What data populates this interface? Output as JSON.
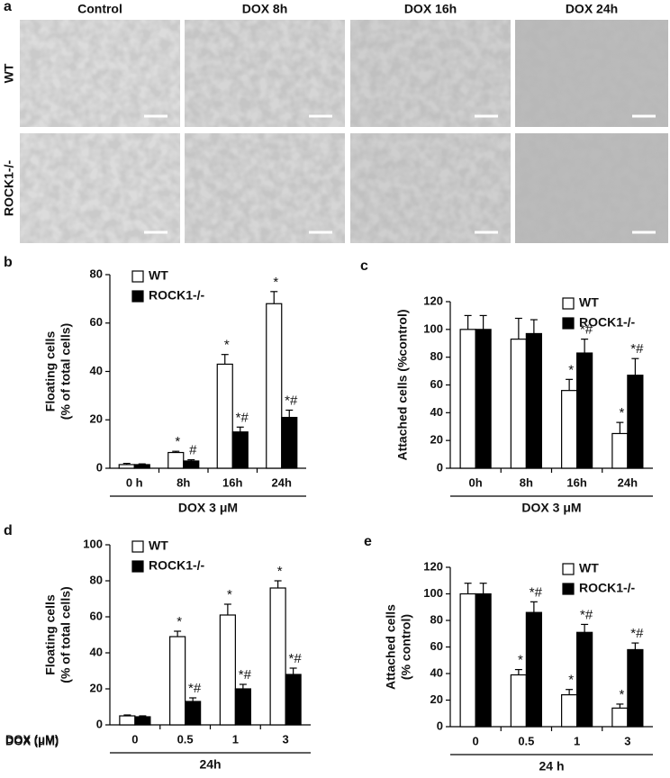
{
  "figure_a": {
    "panel": "a",
    "columns": [
      "Control",
      "DOX 8h",
      "DOX 16h",
      "DOX 24h"
    ],
    "rows": [
      "WT",
      "ROCK1-/-"
    ]
  },
  "chart_data": [
    {
      "type": "bar",
      "panel": "b",
      "ylabel": [
        "Floating cells",
        "(% of total cells)"
      ],
      "xlabel": "DOX 3 μM",
      "categories": [
        "0 h",
        "8h",
        "16h",
        "24h"
      ],
      "ylim": [
        0,
        80
      ],
      "yticks": [
        0,
        20,
        40,
        60,
        80
      ],
      "legend": "upper left",
      "series": [
        {
          "name": "WT",
          "color": "#ffffff",
          "values": [
            1.5,
            6.5,
            43,
            68
          ],
          "errors": [
            0.5,
            0.5,
            4,
            5
          ],
          "annotations": [
            null,
            "*",
            "*",
            "*"
          ]
        },
        {
          "name": "ROCK1-/-",
          "color": "#000000",
          "values": [
            1.5,
            3,
            15,
            21
          ],
          "errors": [
            0.3,
            0.5,
            2,
            3
          ],
          "annotations": [
            null,
            "#",
            "*#",
            "*#"
          ]
        }
      ]
    },
    {
      "type": "bar",
      "panel": "c",
      "ylabel": [
        "Attached cells (%control)"
      ],
      "xlabel": "DOX 3 μM",
      "categories": [
        "0h",
        "8h",
        "16h",
        "24h"
      ],
      "ylim": [
        0,
        120
      ],
      "yticks": [
        0,
        20,
        40,
        60,
        80,
        100,
        120
      ],
      "legend": "upper right",
      "series": [
        {
          "name": "WT",
          "color": "#ffffff",
          "values": [
            100,
            93,
            56,
            25
          ],
          "errors": [
            10,
            15,
            8,
            8
          ],
          "annotations": [
            null,
            null,
            "*",
            "*"
          ]
        },
        {
          "name": "ROCK1-/-",
          "color": "#000000",
          "values": [
            100,
            97,
            83,
            67
          ],
          "errors": [
            10,
            10,
            10,
            12
          ],
          "annotations": [
            null,
            null,
            "*#",
            "*#"
          ]
        }
      ]
    },
    {
      "type": "bar",
      "panel": "d",
      "ylabel": [
        "Floating cells",
        "(% of total cells)"
      ],
      "xlabel": "24h",
      "xlabel_prefix": "DOX (μM)",
      "categories": [
        "0",
        "0.5",
        "1",
        "3"
      ],
      "ylim": [
        0,
        100
      ],
      "yticks": [
        0,
        20,
        40,
        60,
        80,
        100
      ],
      "legend": "upper left",
      "series": [
        {
          "name": "WT",
          "color": "#ffffff",
          "values": [
            5,
            49,
            61,
            76
          ],
          "errors": [
            0.5,
            3,
            6,
            4
          ],
          "annotations": [
            null,
            "*",
            "*",
            "*"
          ]
        },
        {
          "name": "ROCK1-/-",
          "color": "#000000",
          "values": [
            4.5,
            13,
            20,
            28
          ],
          "errors": [
            0.5,
            2,
            2.5,
            3.5
          ],
          "annotations": [
            null,
            "*#",
            "*#",
            "*#"
          ]
        }
      ]
    },
    {
      "type": "bar",
      "panel": "e",
      "ylabel": [
        "Attached cells",
        "(% control)"
      ],
      "xlabel": "24 h",
      "xlabel_prefix": "DOX (μM)",
      "categories": [
        "0",
        "0.5",
        "1",
        "3"
      ],
      "ylim": [
        0,
        120
      ],
      "yticks": [
        0,
        20,
        40,
        60,
        80,
        100,
        120
      ],
      "legend": "upper right",
      "series": [
        {
          "name": "WT",
          "color": "#ffffff",
          "values": [
            100,
            39,
            24,
            14
          ],
          "errors": [
            8,
            4,
            4,
            3
          ],
          "annotations": [
            null,
            "*",
            "*",
            "*"
          ]
        },
        {
          "name": "ROCK1-/-",
          "color": "#000000",
          "values": [
            100,
            86,
            71,
            58
          ],
          "errors": [
            8,
            8,
            6,
            5
          ],
          "annotations": [
            null,
            "*#",
            "*#",
            "*#"
          ]
        }
      ]
    }
  ]
}
